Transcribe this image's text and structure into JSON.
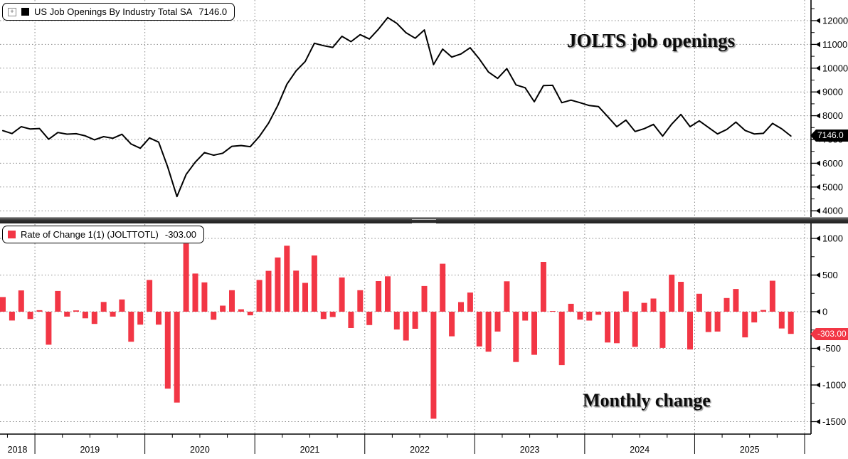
{
  "legend_top": {
    "expander_glyph": "+",
    "swatch_color": "#000000",
    "label": "US Job Openings By Industry Total SA",
    "value": "7146.0"
  },
  "legend_bottom": {
    "swatch_color": "#f23645",
    "label": "Rate of Change 1(1) (JOLTTOTL)",
    "value": "-303.00"
  },
  "annotations": {
    "top": "JOLTS job openings",
    "bottom": "Monthly change"
  },
  "value_tags": {
    "openings": "7146.0",
    "openings_bg": "#000000",
    "change": "-303.00",
    "change_bg": "#f23645"
  },
  "colors": {
    "line": "#000000",
    "bar": "#f23645",
    "grid": "#8a8a8a",
    "axis": "#000000",
    "background": "#ffffff"
  },
  "x_axis": {
    "years": [
      "2018",
      "2019",
      "2020",
      "2021",
      "2022",
      "2023",
      "2024",
      "2025"
    ]
  },
  "chart_data": {
    "type": "combo",
    "title": "US Job Openings By Industry Total SA 7146.0 / Rate of Change 1(1) (JOLTTOTL) -303.00",
    "months": [
      "2018-09",
      "2018-10",
      "2018-11",
      "2018-12",
      "2019-01",
      "2019-02",
      "2019-03",
      "2019-04",
      "2019-05",
      "2019-06",
      "2019-07",
      "2019-08",
      "2019-09",
      "2019-10",
      "2019-11",
      "2019-12",
      "2020-01",
      "2020-02",
      "2020-03",
      "2020-04",
      "2020-05",
      "2020-06",
      "2020-07",
      "2020-08",
      "2020-09",
      "2020-10",
      "2020-11",
      "2020-12",
      "2021-01",
      "2021-02",
      "2021-03",
      "2021-04",
      "2021-05",
      "2021-06",
      "2021-07",
      "2021-08",
      "2021-09",
      "2021-10",
      "2021-11",
      "2021-12",
      "2022-01",
      "2022-02",
      "2022-03",
      "2022-04",
      "2022-05",
      "2022-06",
      "2022-07",
      "2022-08",
      "2022-09",
      "2022-10",
      "2022-11",
      "2022-12",
      "2023-01",
      "2023-02",
      "2023-03",
      "2023-04",
      "2023-05",
      "2023-06",
      "2023-07",
      "2023-08",
      "2023-09",
      "2023-10",
      "2023-11",
      "2023-12",
      "2024-01",
      "2024-02",
      "2024-03",
      "2024-04",
      "2024-05",
      "2024-06",
      "2024-07",
      "2024-08",
      "2024-09",
      "2024-10",
      "2024-11",
      "2024-12",
      "2025-01",
      "2025-02",
      "2025-03",
      "2025-04",
      "2025-05",
      "2025-06",
      "2025-07",
      "2025-08",
      "2025-09",
      "2025-10",
      "2025-11"
    ],
    "panels": [
      {
        "type": "line",
        "name": "US Job Openings By Industry Total SA",
        "last_value": 7146.0,
        "ylim": [
          3700,
          12850
        ],
        "yticks": [
          12000,
          11000,
          10000,
          9000,
          8000,
          7000,
          6000,
          5000,
          4000
        ],
        "minor_tick_step": 500,
        "color": "#000000",
        "legend_position": "top-left",
        "values": [
          7370,
          7250,
          7540,
          7440,
          7460,
          7010,
          7293,
          7226,
          7243,
          7153,
          6986,
          7119,
          7052,
          7219,
          6809,
          6632,
          7065,
          6888,
          5838,
          4598,
          5528,
          6048,
          6448,
          6338,
          6421,
          6714,
          6747,
          6697,
          7130,
          7687,
          8427,
          9327,
          9887,
          10280,
          11047,
          10947,
          10874,
          11341,
          11118,
          11411,
          11228,
          11645,
          12128,
          11885,
          11492,
          11259,
          11609,
          10149,
          10803,
          10467,
          10598,
          10859,
          10385,
          9839,
          9568,
          9983,
          9297,
          9176,
          8588,
          9268,
          9278,
          8549,
          8657,
          8549,
          8428,
          8386,
          7966,
          7536,
          7814,
          7334,
          7454,
          7634,
          7140,
          7646,
          8054,
          7538,
          7783,
          7505,
          7234,
          7420,
          7730,
          7380,
          7233,
          7256,
          7678,
          7449,
          7146
        ]
      },
      {
        "type": "bar",
        "name": "Rate of Change 1(1) (JOLTTOTL)",
        "last_value": -303.0,
        "ylim": [
          -1650,
          1175
        ],
        "yticks": [
          1000,
          500,
          0,
          -500,
          -1000,
          -1500
        ],
        "minor_ticks": [
          750,
          250,
          -250,
          -750,
          -1250
        ],
        "color": "#f23645",
        "legend_position": "top-left",
        "values": [
          200,
          -120,
          290,
          -100,
          20,
          -450,
          283,
          -67,
          17,
          -90,
          -167,
          133,
          -67,
          167,
          -410,
          -177,
          433,
          -177,
          -1050,
          -1240,
          930,
          520,
          400,
          -110,
          83,
          293,
          33,
          -50,
          433,
          557,
          740,
          900,
          560,
          393,
          767,
          -100,
          -73,
          467,
          -223,
          293,
          -183,
          417,
          483,
          -243,
          -393,
          -233,
          350,
          -1460,
          654,
          -336,
          131,
          261,
          -474,
          -546,
          -271,
          415,
          -686,
          -121,
          -588,
          680,
          10,
          -729,
          108,
          -108,
          -121,
          -42,
          -420,
          -430,
          278,
          -480,
          120,
          180,
          -494,
          506,
          408,
          -516,
          245,
          -278,
          -271,
          186,
          310,
          -350,
          -147,
          23,
          422,
          -229,
          -303
        ]
      }
    ]
  }
}
